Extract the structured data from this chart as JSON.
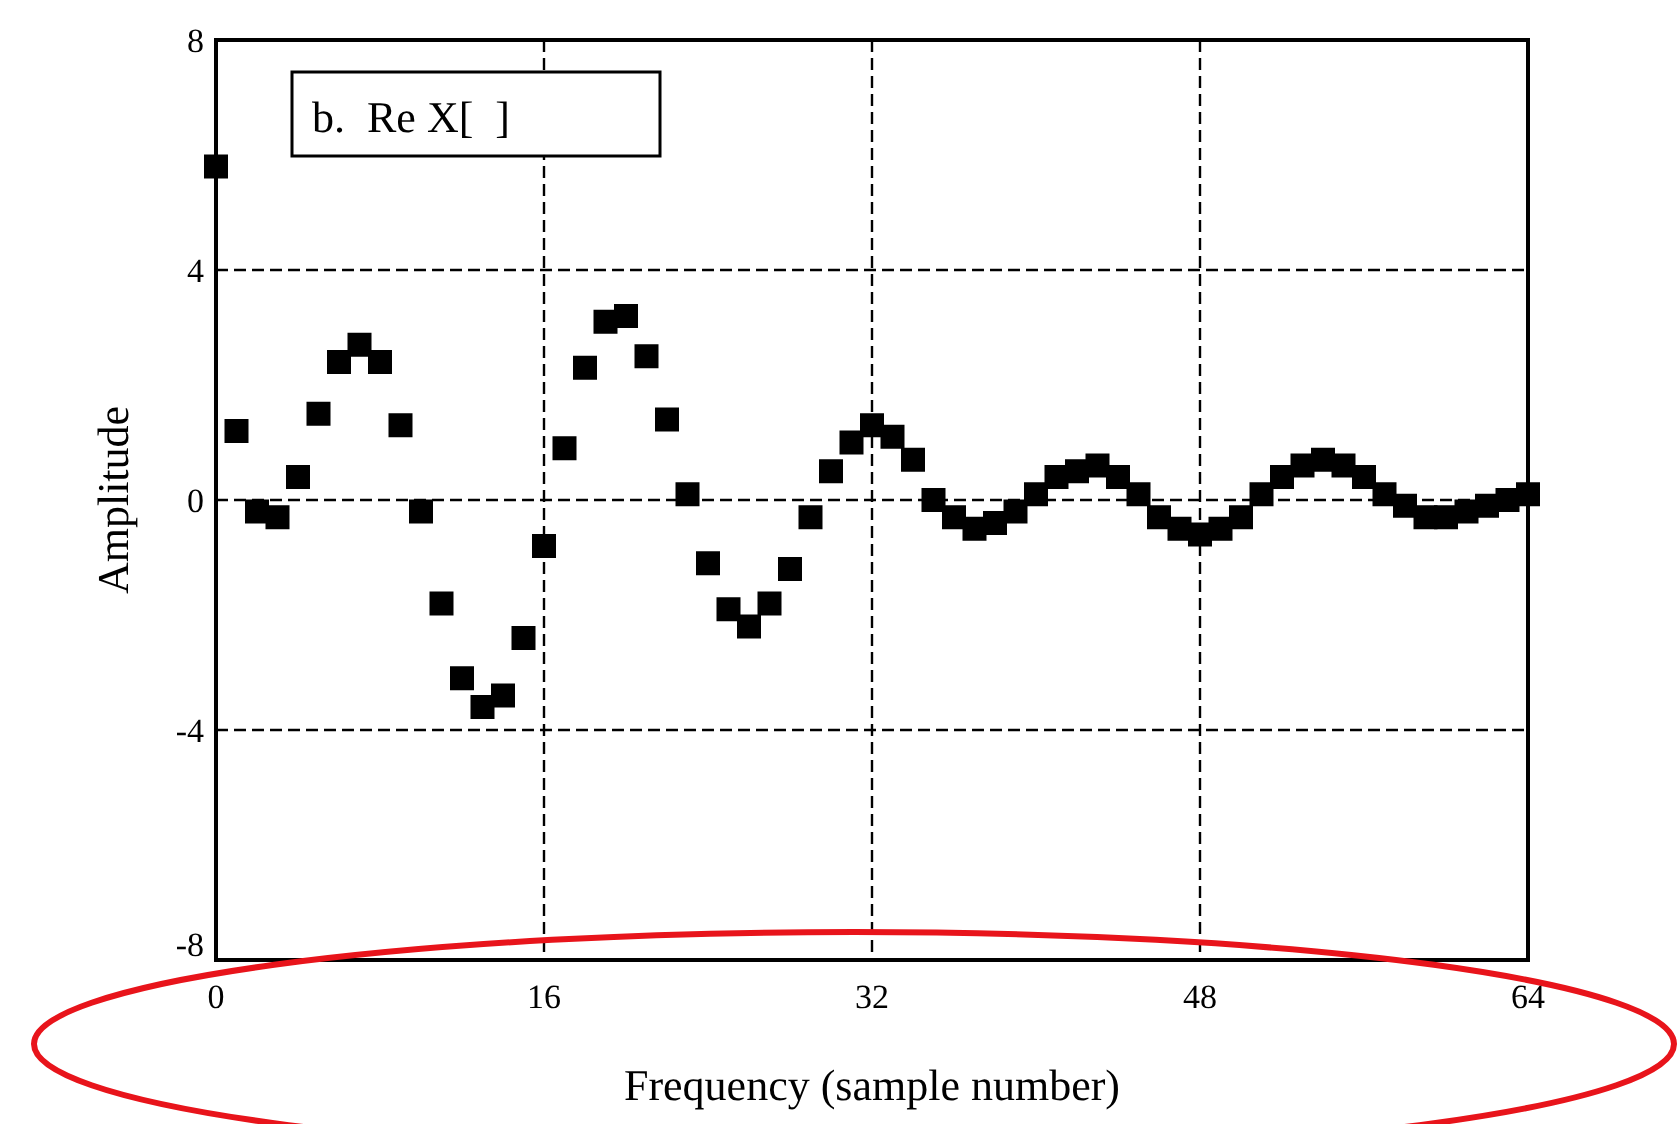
{
  "chart_data": {
    "type": "scatter",
    "xlabel": "Frequency (sample number)",
    "ylabel": "Amplitude",
    "annotations": [
      "b.  Re X[  ]"
    ],
    "x": [
      0,
      1,
      2,
      3,
      4,
      5,
      6,
      7,
      8,
      9,
      10,
      11,
      12,
      13,
      14,
      15,
      16,
      17,
      18,
      19,
      20,
      21,
      22,
      23,
      24,
      25,
      26,
      27,
      28,
      29,
      30,
      31,
      32,
      33,
      34,
      35,
      36,
      37,
      38,
      39,
      40,
      41,
      42,
      43,
      44,
      45,
      46,
      47,
      48,
      49,
      50,
      51,
      52,
      53,
      54,
      55,
      56,
      57,
      58,
      59,
      60,
      61,
      62,
      63,
      64
    ],
    "series": [
      {
        "color": "#000000",
        "values": [
          5.8,
          1.2,
          -0.2,
          -0.3,
          0.4,
          1.5,
          2.4,
          2.7,
          2.4,
          1.3,
          -0.2,
          -1.8,
          -3.1,
          -3.6,
          -3.4,
          -2.4,
          -0.8,
          0.9,
          2.3,
          3.1,
          3.2,
          2.5,
          1.4,
          0.1,
          -1.1,
          -1.9,
          -2.2,
          -1.8,
          -1.2,
          -0.3,
          0.5,
          1.0,
          1.3,
          1.1,
          0.7,
          0.0,
          -0.3,
          -0.5,
          -0.4,
          -0.2,
          0.1,
          0.4,
          0.5,
          0.6,
          0.4,
          0.1,
          -0.3,
          -0.5,
          -0.6,
          -0.5,
          -0.3,
          0.1,
          0.4,
          0.6,
          0.7,
          0.6,
          0.4,
          0.1,
          -0.1,
          -0.3,
          -0.3,
          -0.2,
          -0.1,
          0.0,
          0.1
        ]
      }
    ],
    "xlim": [
      0,
      64
    ],
    "xticks": [
      0,
      16,
      32,
      48,
      64
    ],
    "ylim": [
      -8,
      8
    ],
    "yticks": [
      -8,
      -4,
      0,
      4,
      8
    ],
    "grid": true,
    "marker": "square"
  }
}
